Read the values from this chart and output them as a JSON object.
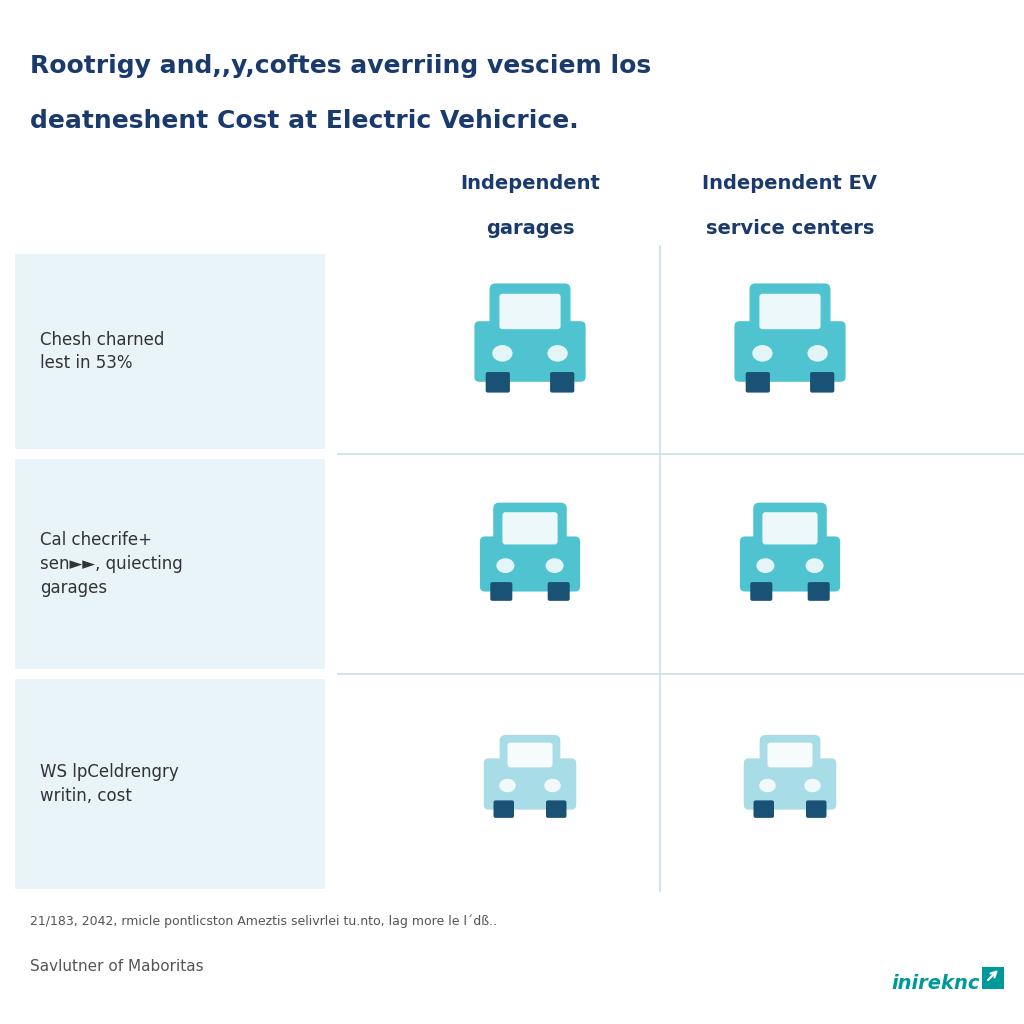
{
  "title_line1": "Rootrigy and,,y,coftes averriing vesciem los",
  "title_line2": "deatneshent Cost at Electric Vehicrice.",
  "col1_header_line1": "Independent",
  "col1_header_line2": "garages",
  "col2_header_line1": "Independent EV",
  "col2_header_line2": "service centers",
  "row_labels": [
    "Chesh charned\nlest in 53%",
    "Cal checrife+\nsen►►, quiecting\ngarages",
    "WS lpCeldrengry\nwritin, cost"
  ],
  "footnote": "21/183, 2042, rmicle pontlicston Ameztis selivrlei tu.nto, lag more le l´dß..",
  "source": "Savlutner of Maboritas",
  "brand": "inireknc",
  "bg_color": "#ffffff",
  "row_bg_color": "#e8f4f8",
  "title_color": "#1a3a6e",
  "header_color": "#1a3a6e",
  "label_color": "#333333",
  "footnote_color": "#555555",
  "brand_color": "#009999",
  "car_color_row0": "#4fc3d0",
  "car_color_row1": "#4fc3d0",
  "car_color_row2": "#a8dde8",
  "car_dark": "#1a5276",
  "divider_color": "#c8e0e8",
  "grid_line_color": "#c8e0e8"
}
